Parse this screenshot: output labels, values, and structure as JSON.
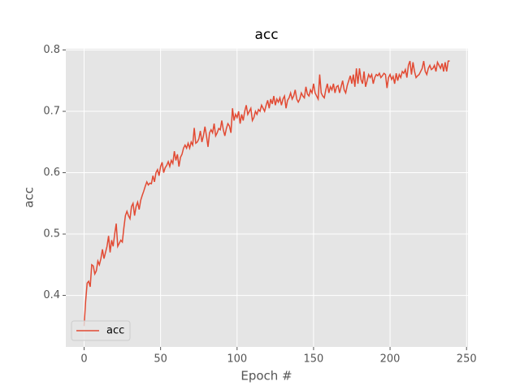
{
  "chart_data": {
    "type": "line",
    "title": "acc",
    "xlabel": "Epoch #",
    "ylabel": "acc",
    "x": [
      0,
      1,
      2,
      3,
      4,
      5,
      6,
      7,
      8,
      9,
      10,
      11,
      12,
      13,
      14,
      15,
      16,
      17,
      18,
      19,
      20,
      21,
      22,
      23,
      24,
      25,
      26,
      27,
      28,
      29,
      30,
      31,
      32,
      33,
      34,
      35,
      36,
      37,
      38,
      39,
      40,
      41,
      42,
      43,
      44,
      45,
      46,
      47,
      48,
      49,
      50,
      51,
      52,
      53,
      54,
      55,
      56,
      57,
      58,
      59,
      60,
      61,
      62,
      63,
      64,
      65,
      66,
      67,
      68,
      69,
      70,
      71,
      72,
      73,
      74,
      75,
      76,
      77,
      78,
      79,
      80,
      81,
      82,
      83,
      84,
      85,
      86,
      87,
      88,
      89,
      90,
      91,
      92,
      93,
      94,
      95,
      96,
      97,
      98,
      99,
      100,
      101,
      102,
      103,
      104,
      105,
      106,
      107,
      108,
      109,
      110,
      111,
      112,
      113,
      114,
      115,
      116,
      117,
      118,
      119,
      120,
      121,
      122,
      123,
      124,
      125,
      126,
      127,
      128,
      129,
      130,
      131,
      132,
      133,
      134,
      135,
      136,
      137,
      138,
      139,
      140,
      141,
      142,
      143,
      144,
      145,
      146,
      147,
      148,
      149,
      150,
      151,
      152,
      153,
      154,
      155,
      156,
      157,
      158,
      159,
      160,
      161,
      162,
      163,
      164,
      165,
      166,
      167,
      168,
      169,
      170,
      171,
      172,
      173,
      174,
      175,
      176,
      177,
      178,
      179,
      180,
      181,
      182,
      183,
      184,
      185,
      186,
      187,
      188,
      189,
      190,
      191,
      192,
      193,
      194,
      195,
      196,
      197,
      198,
      199,
      200,
      201,
      202,
      203,
      204,
      205,
      206,
      207,
      208,
      209,
      210,
      211,
      212,
      213,
      214,
      215,
      216,
      217,
      218,
      219,
      220,
      221,
      222,
      223,
      224,
      225,
      226,
      227,
      228,
      229,
      230,
      231,
      232,
      233,
      234,
      235,
      236,
      237,
      238,
      239
    ],
    "series": [
      {
        "name": "acc",
        "color": "#e24a33",
        "values": [
          0.35,
          0.39,
          0.42,
          0.423,
          0.414,
          0.45,
          0.448,
          0.435,
          0.44,
          0.456,
          0.45,
          0.46,
          0.475,
          0.46,
          0.47,
          0.48,
          0.497,
          0.47,
          0.49,
          0.48,
          0.5,
          0.517,
          0.48,
          0.485,
          0.49,
          0.487,
          0.51,
          0.53,
          0.537,
          0.53,
          0.525,
          0.545,
          0.55,
          0.53,
          0.545,
          0.552,
          0.54,
          0.555,
          0.563,
          0.57,
          0.578,
          0.585,
          0.58,
          0.583,
          0.582,
          0.595,
          0.585,
          0.6,
          0.605,
          0.595,
          0.61,
          0.617,
          0.6,
          0.608,
          0.612,
          0.618,
          0.61,
          0.62,
          0.615,
          0.635,
          0.62,
          0.63,
          0.61,
          0.625,
          0.63,
          0.64,
          0.645,
          0.64,
          0.648,
          0.64,
          0.65,
          0.645,
          0.673,
          0.648,
          0.65,
          0.655,
          0.668,
          0.65,
          0.66,
          0.675,
          0.66,
          0.642,
          0.665,
          0.67,
          0.665,
          0.68,
          0.66,
          0.665,
          0.672,
          0.67,
          0.685,
          0.67,
          0.66,
          0.672,
          0.68,
          0.676,
          0.665,
          0.705,
          0.685,
          0.695,
          0.69,
          0.7,
          0.68,
          0.695,
          0.685,
          0.7,
          0.71,
          0.695,
          0.7,
          0.705,
          0.685,
          0.69,
          0.7,
          0.695,
          0.703,
          0.7,
          0.71,
          0.705,
          0.7,
          0.71,
          0.718,
          0.705,
          0.72,
          0.712,
          0.725,
          0.71,
          0.72,
          0.715,
          0.722,
          0.71,
          0.72,
          0.725,
          0.705,
          0.718,
          0.722,
          0.73,
          0.72,
          0.725,
          0.735,
          0.72,
          0.715,
          0.72,
          0.73,
          0.725,
          0.722,
          0.74,
          0.728,
          0.725,
          0.735,
          0.73,
          0.745,
          0.73,
          0.725,
          0.72,
          0.76,
          0.73,
          0.725,
          0.722,
          0.735,
          0.745,
          0.73,
          0.74,
          0.735,
          0.745,
          0.73,
          0.74,
          0.742,
          0.73,
          0.74,
          0.75,
          0.735,
          0.73,
          0.742,
          0.75,
          0.758,
          0.745,
          0.76,
          0.74,
          0.77,
          0.745,
          0.77,
          0.752,
          0.745,
          0.765,
          0.74,
          0.75,
          0.76,
          0.755,
          0.76,
          0.745,
          0.755,
          0.76,
          0.758,
          0.762,
          0.755,
          0.758,
          0.762,
          0.76,
          0.738,
          0.755,
          0.76,
          0.752,
          0.757,
          0.745,
          0.762,
          0.75,
          0.76,
          0.755,
          0.765,
          0.762,
          0.768,
          0.755,
          0.775,
          0.782,
          0.76,
          0.78,
          0.765,
          0.755,
          0.758,
          0.76,
          0.765,
          0.77,
          0.782,
          0.765,
          0.76,
          0.77,
          0.775,
          0.768,
          0.77,
          0.775,
          0.765,
          0.78,
          0.775,
          0.77,
          0.778,
          0.765,
          0.78,
          0.765,
          0.782,
          0.782
        ]
      }
    ],
    "xlim": [
      -11.95,
      250.95
    ],
    "xticks": [
      0,
      50,
      100,
      150,
      200,
      250
    ],
    "ylim": [
      0.316,
      0.802
    ],
    "yticks": [
      0.4,
      0.5,
      0.6,
      0.7,
      0.8
    ],
    "grid": true,
    "legend": "lower left"
  }
}
